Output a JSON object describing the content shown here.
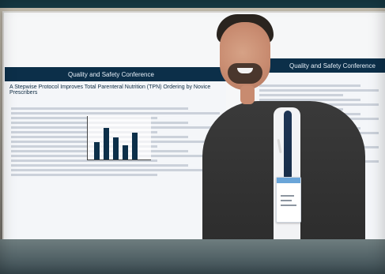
{
  "photo": {
    "poster_left": {
      "band_text": "Quality and Safety Conference",
      "title": "A Stepwise Protocol Improves Total Parenteral Nutrition (TPN) Ordering by Novice Prescribers"
    },
    "poster_right": {
      "band_text": "Quality and Safety Conference"
    }
  }
}
